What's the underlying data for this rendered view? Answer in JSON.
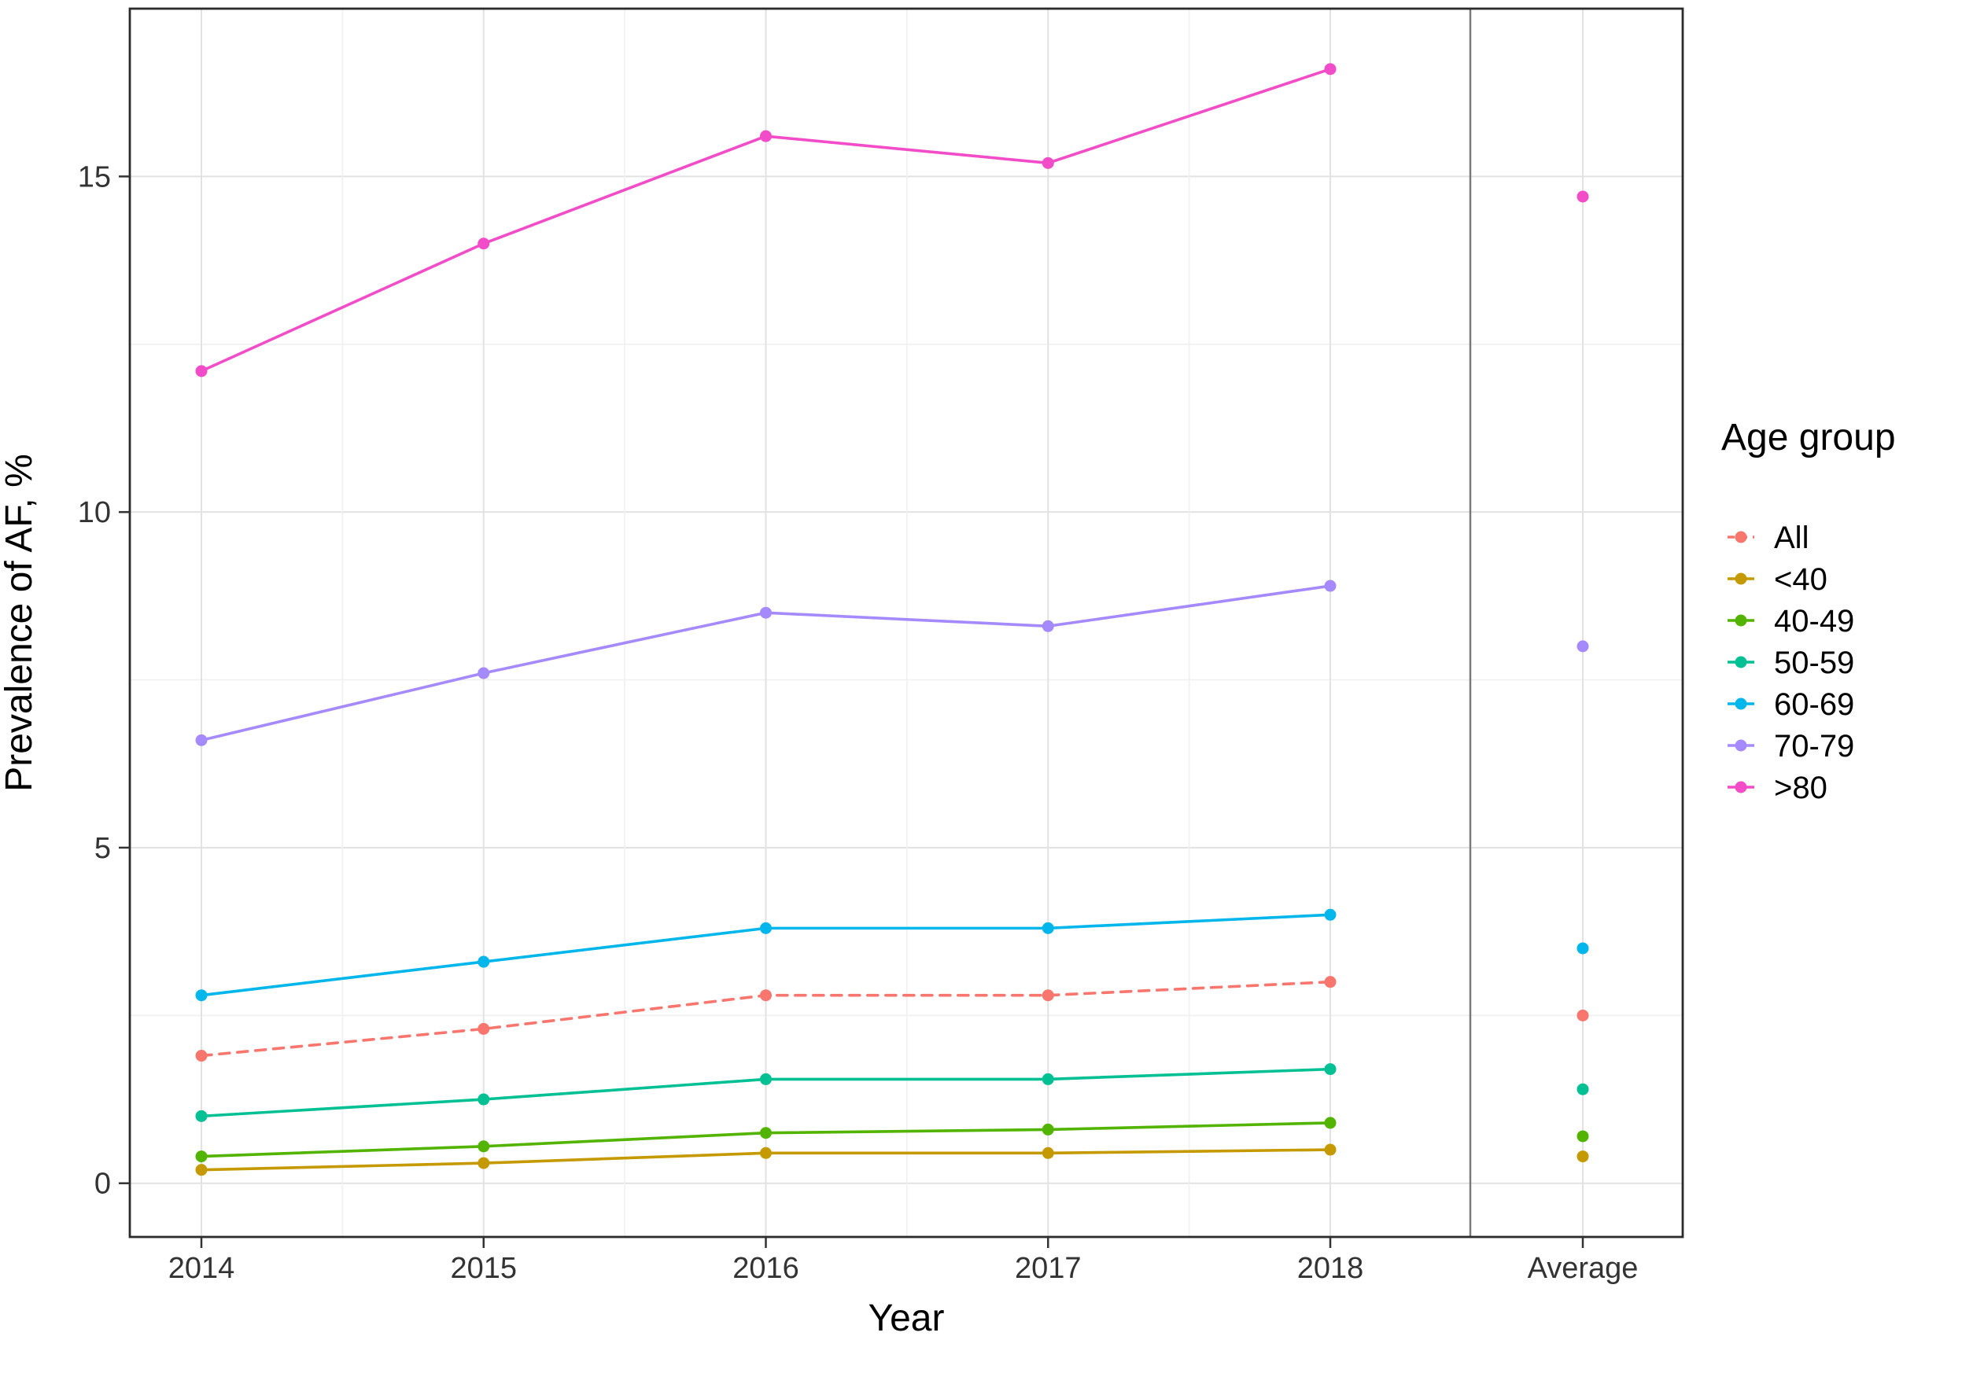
{
  "chart_data": {
    "type": "line",
    "title": "",
    "xlabel": "Year",
    "ylabel": "Prevalence of AF, %",
    "legend_title": "Age group",
    "x_categories": [
      "2014",
      "2015",
      "2016",
      "2017",
      "2018"
    ],
    "average_label": "Average",
    "y_ticks": [
      0,
      5,
      10,
      15
    ],
    "y_minor_ticks": [
      2.5,
      7.5,
      12.5
    ],
    "ylim": [
      -0.8,
      17.5
    ],
    "grid": true,
    "legend_position": "right",
    "series": [
      {
        "name": "All",
        "color": "#F8766D",
        "dash": true,
        "values": [
          1.9,
          2.3,
          2.8,
          2.8,
          3.0
        ],
        "average": 2.5
      },
      {
        "name": "<40",
        "color": "#C49A00",
        "dash": false,
        "values": [
          0.2,
          0.3,
          0.45,
          0.45,
          0.5
        ],
        "average": 0.4
      },
      {
        "name": "40-49",
        "color": "#53B400",
        "dash": false,
        "values": [
          0.4,
          0.55,
          0.75,
          0.8,
          0.9
        ],
        "average": 0.7
      },
      {
        "name": "50-59",
        "color": "#00C094",
        "dash": false,
        "values": [
          1.0,
          1.25,
          1.55,
          1.55,
          1.7
        ],
        "average": 1.4
      },
      {
        "name": "60-69",
        "color": "#00B6EB",
        "dash": false,
        "values": [
          2.8,
          3.3,
          3.8,
          3.8,
          4.0
        ],
        "average": 3.5
      },
      {
        "name": "70-79",
        "color": "#A58AFF",
        "dash": false,
        "values": [
          6.6,
          7.6,
          8.5,
          8.3,
          8.9
        ],
        "average": 8.0
      },
      {
        "name": ">80",
        "color": "#F24CC8",
        "dash": false,
        "values": [
          12.1,
          14.0,
          15.6,
          15.2,
          16.6
        ],
        "average": 14.7
      }
    ]
  }
}
